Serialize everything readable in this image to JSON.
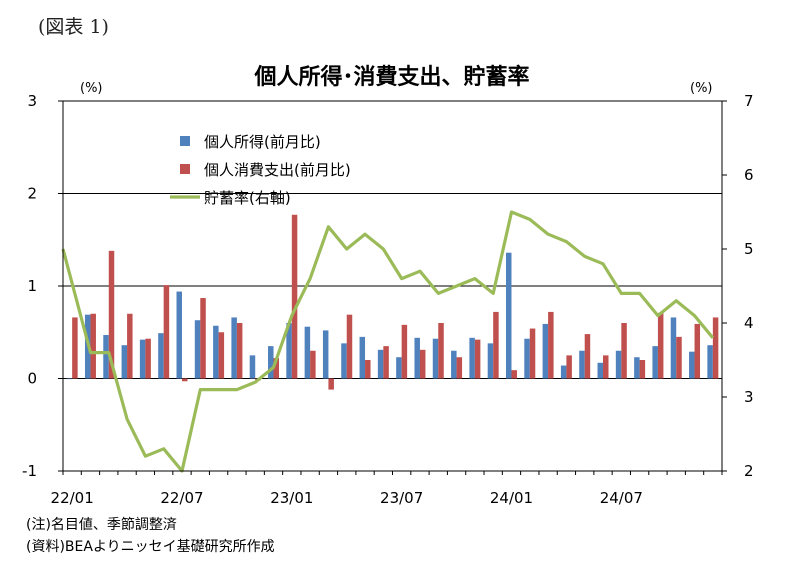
{
  "figure_label": "(図表 1)",
  "notes": [
    "(注)名目値、季節調整済",
    "(資料)BEAよりニッセイ基礎研究所作成"
  ],
  "chart_data": {
    "type": "bar",
    "title": "個人所得･消費支出、貯蓄率",
    "left_unit": "(%)",
    "right_unit": "(%)",
    "ylim_left": [
      -1,
      3
    ],
    "ylim_right": [
      2,
      7
    ],
    "yticks_left": [
      "-1",
      "0",
      "1",
      "2",
      "3"
    ],
    "yticks_right": [
      "2",
      "3",
      "4",
      "5",
      "6",
      "7"
    ],
    "grid": true,
    "legend_position": "top-center",
    "x_tick_labels": [
      {
        "label": "22/01",
        "index": 0
      },
      {
        "label": "22/07",
        "index": 6
      },
      {
        "label": "23/01",
        "index": 12
      },
      {
        "label": "23/07",
        "index": 18
      },
      {
        "label": "24/01",
        "index": 24
      },
      {
        "label": "24/07",
        "index": 30
      }
    ],
    "months": [
      "22/01",
      "22/02",
      "22/03",
      "22/04",
      "22/05",
      "22/06",
      "22/07",
      "22/08",
      "22/09",
      "22/10",
      "22/11",
      "22/12",
      "23/01",
      "23/02",
      "23/03",
      "23/04",
      "23/05",
      "23/06",
      "23/07",
      "23/08",
      "23/09",
      "23/10",
      "23/11",
      "23/12",
      "24/01",
      "24/02",
      "24/03",
      "24/04",
      "24/05",
      "24/06",
      "24/07",
      "24/08",
      "24/09",
      "24/10",
      "24/11",
      "24/12"
    ],
    "series": [
      {
        "name": "個人所得(前月比)",
        "type": "bar",
        "axis": "left",
        "color": "#4f81bd",
        "values": [
          0.0,
          0.69,
          0.47,
          0.36,
          0.42,
          0.49,
          0.94,
          0.63,
          0.57,
          0.66,
          0.25,
          0.35,
          0.6,
          0.56,
          0.52,
          0.38,
          0.45,
          0.31,
          0.23,
          0.44,
          0.43,
          0.3,
          0.44,
          0.38,
          1.36,
          0.43,
          0.59,
          0.14,
          0.3,
          0.17,
          0.3,
          0.23,
          0.35,
          0.66,
          0.29,
          0.36
        ]
      },
      {
        "name": "個人消費支出(前月比)",
        "type": "bar",
        "axis": "left",
        "color": "#c0504d",
        "values": [
          0.66,
          0.7,
          1.38,
          0.7,
          0.43,
          1.01,
          -0.03,
          0.87,
          0.5,
          0.6,
          -0.02,
          0.22,
          1.77,
          0.3,
          -0.12,
          0.69,
          0.2,
          0.35,
          0.58,
          0.31,
          0.6,
          0.23,
          0.42,
          0.72,
          0.09,
          0.54,
          0.72,
          0.25,
          0.48,
          0.25,
          0.6,
          0.2,
          0.71,
          0.45,
          0.59,
          0.66
        ]
      },
      {
        "name": "貯蓄率(右軸)",
        "type": "line",
        "axis": "right",
        "color": "#9bbb59",
        "values": [
          5.0,
          3.6,
          3.6,
          2.7,
          2.2,
          2.3,
          2.0,
          3.1,
          3.1,
          3.1,
          3.2,
          3.4,
          4.1,
          4.6,
          5.3,
          5.0,
          5.2,
          5.0,
          4.6,
          4.7,
          4.4,
          4.5,
          4.6,
          4.4,
          5.5,
          5.4,
          5.2,
          5.1,
          4.9,
          4.8,
          4.4,
          4.4,
          4.1,
          4.3,
          4.1,
          3.8
        ]
      }
    ]
  }
}
